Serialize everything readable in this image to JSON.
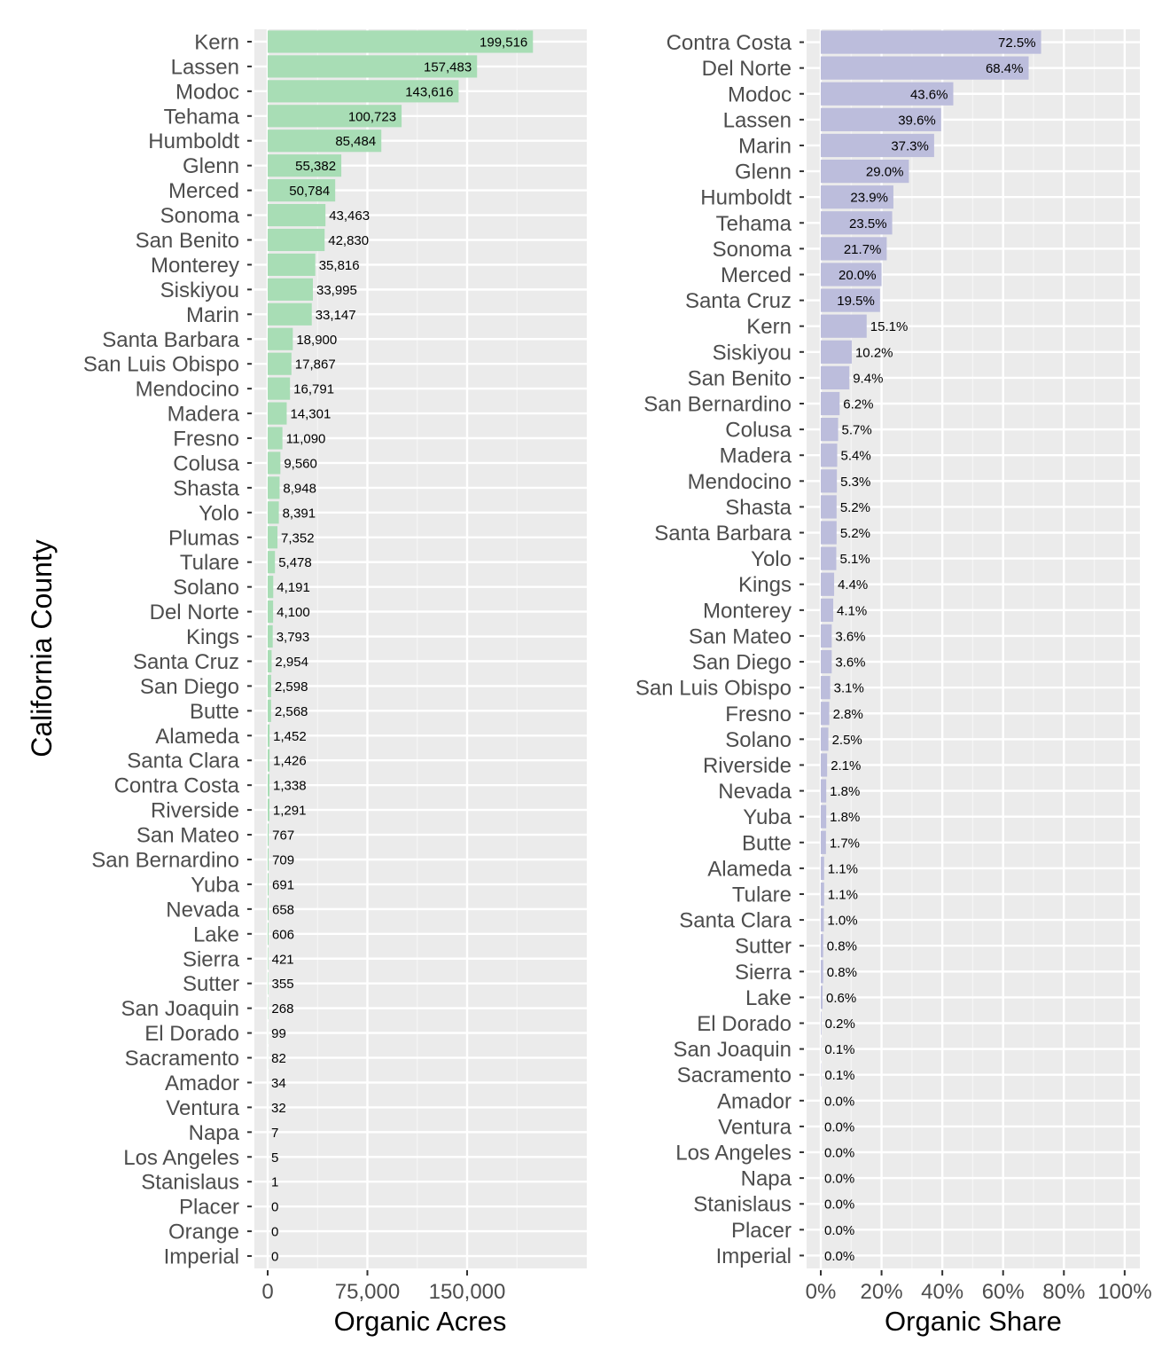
{
  "y_axis_title": "California County",
  "chart_data": [
    {
      "type": "bar",
      "orientation": "horizontal",
      "xlabel": "Organic Acres",
      "ylabel": "California County",
      "xlim": [
        0,
        240000
      ],
      "xticks": [
        0,
        75000,
        150000
      ],
      "xtick_labels": [
        "0",
        "75,000",
        "150,000"
      ],
      "grid": true,
      "bar_color": "#a8ddb5",
      "categories": [
        "Kern",
        "Lassen",
        "Modoc",
        "Tehama",
        "Humboldt",
        "Glenn",
        "Merced",
        "Sonoma",
        "San Benito",
        "Monterey",
        "Siskiyou",
        "Marin",
        "Santa Barbara",
        "San Luis Obispo",
        "Mendocino",
        "Madera",
        "Fresno",
        "Colusa",
        "Shasta",
        "Yolo",
        "Plumas",
        "Tulare",
        "Solano",
        "Del Norte",
        "Kings",
        "Santa Cruz",
        "San Diego",
        "Butte",
        "Alameda",
        "Santa Clara",
        "Contra Costa",
        "Riverside",
        "San Mateo",
        "San Bernardino",
        "Yuba",
        "Nevada",
        "Lake",
        "Sierra",
        "Sutter",
        "San Joaquin",
        "El Dorado",
        "Sacramento",
        "Amador",
        "Ventura",
        "Napa",
        "Los Angeles",
        "Stanislaus",
        "Placer",
        "Orange",
        "Imperial"
      ],
      "values": [
        199516,
        157483,
        143616,
        100723,
        85484,
        55382,
        50784,
        43463,
        42830,
        35816,
        33995,
        33147,
        18900,
        17867,
        16791,
        14301,
        11090,
        9560,
        8948,
        8391,
        7352,
        5478,
        4191,
        4100,
        3793,
        2954,
        2598,
        2568,
        1452,
        1426,
        1338,
        1291,
        767,
        709,
        691,
        658,
        606,
        421,
        355,
        268,
        99,
        82,
        34,
        32,
        7,
        5,
        1,
        0,
        0,
        0
      ],
      "value_labels": [
        "199,516",
        "157,483",
        "143,616",
        "100,723",
        "85,484",
        "55,382",
        "50,784",
        "43,463",
        "42,830",
        "35,816",
        "33,995",
        "33,147",
        "18,900",
        "17,867",
        "16,791",
        "14,301",
        "11,090",
        "9,560",
        "8,948",
        "8,391",
        "7,352",
        "5,478",
        "4,191",
        "4,100",
        "3,793",
        "2,954",
        "2,598",
        "2,568",
        "1,452",
        "1,426",
        "1,338",
        "1,291",
        "767",
        "709",
        "691",
        "658",
        "606",
        "421",
        "355",
        "268",
        "99",
        "82",
        "34",
        "32",
        "7",
        "5",
        "1",
        "0",
        "0",
        "0"
      ]
    },
    {
      "type": "bar",
      "orientation": "horizontal",
      "xlabel": "Organic Share",
      "xlim": [
        0,
        105
      ],
      "xticks": [
        0,
        20,
        40,
        60,
        80,
        100
      ],
      "xtick_labels": [
        "0%",
        "20%",
        "40%",
        "60%",
        "80%",
        "100%"
      ],
      "grid": true,
      "bar_color": "#bcbddc",
      "categories": [
        "Contra Costa",
        "Del Norte",
        "Modoc",
        "Lassen",
        "Marin",
        "Glenn",
        "Humboldt",
        "Tehama",
        "Sonoma",
        "Merced",
        "Santa Cruz",
        "Kern",
        "Siskiyou",
        "San Benito",
        "San Bernardino",
        "Colusa",
        "Madera",
        "Mendocino",
        "Shasta",
        "Santa Barbara",
        "Yolo",
        "Kings",
        "Monterey",
        "San Mateo",
        "San Diego",
        "San Luis Obispo",
        "Fresno",
        "Solano",
        "Riverside",
        "Nevada",
        "Yuba",
        "Butte",
        "Alameda",
        "Tulare",
        "Santa Clara",
        "Sutter",
        "Sierra",
        "Lake",
        "El Dorado",
        "San Joaquin",
        "Sacramento",
        "Amador",
        "Ventura",
        "Los Angeles",
        "Napa",
        "Stanislaus",
        "Placer",
        "Imperial"
      ],
      "values": [
        72.5,
        68.4,
        43.6,
        39.6,
        37.3,
        29.0,
        23.9,
        23.5,
        21.7,
        20.0,
        19.5,
        15.1,
        10.2,
        9.4,
        6.2,
        5.7,
        5.4,
        5.3,
        5.2,
        5.2,
        5.1,
        4.4,
        4.1,
        3.6,
        3.6,
        3.1,
        2.8,
        2.5,
        2.1,
        1.8,
        1.8,
        1.7,
        1.1,
        1.1,
        1.0,
        0.8,
        0.8,
        0.6,
        0.2,
        0.1,
        0.1,
        0.0,
        0.0,
        0.0,
        0.0,
        0.0,
        0.0,
        0.0
      ],
      "value_labels": [
        "72.5%",
        "68.4%",
        "43.6%",
        "39.6%",
        "37.3%",
        "29.0%",
        "23.9%",
        "23.5%",
        "21.7%",
        "20.0%",
        "19.5%",
        "15.1%",
        "10.2%",
        "9.4%",
        "6.2%",
        "5.7%",
        "5.4%",
        "5.3%",
        "5.2%",
        "5.2%",
        "5.1%",
        "4.4%",
        "4.1%",
        "3.6%",
        "3.6%",
        "3.1%",
        "2.8%",
        "2.5%",
        "2.1%",
        "1.8%",
        "1.8%",
        "1.7%",
        "1.1%",
        "1.1%",
        "1.0%",
        "0.8%",
        "0.8%",
        "0.6%",
        "0.2%",
        "0.1%",
        "0.1%",
        "0.0%",
        "0.0%",
        "0.0%",
        "0.0%",
        "0.0%",
        "0.0%",
        "0.0%"
      ]
    }
  ]
}
